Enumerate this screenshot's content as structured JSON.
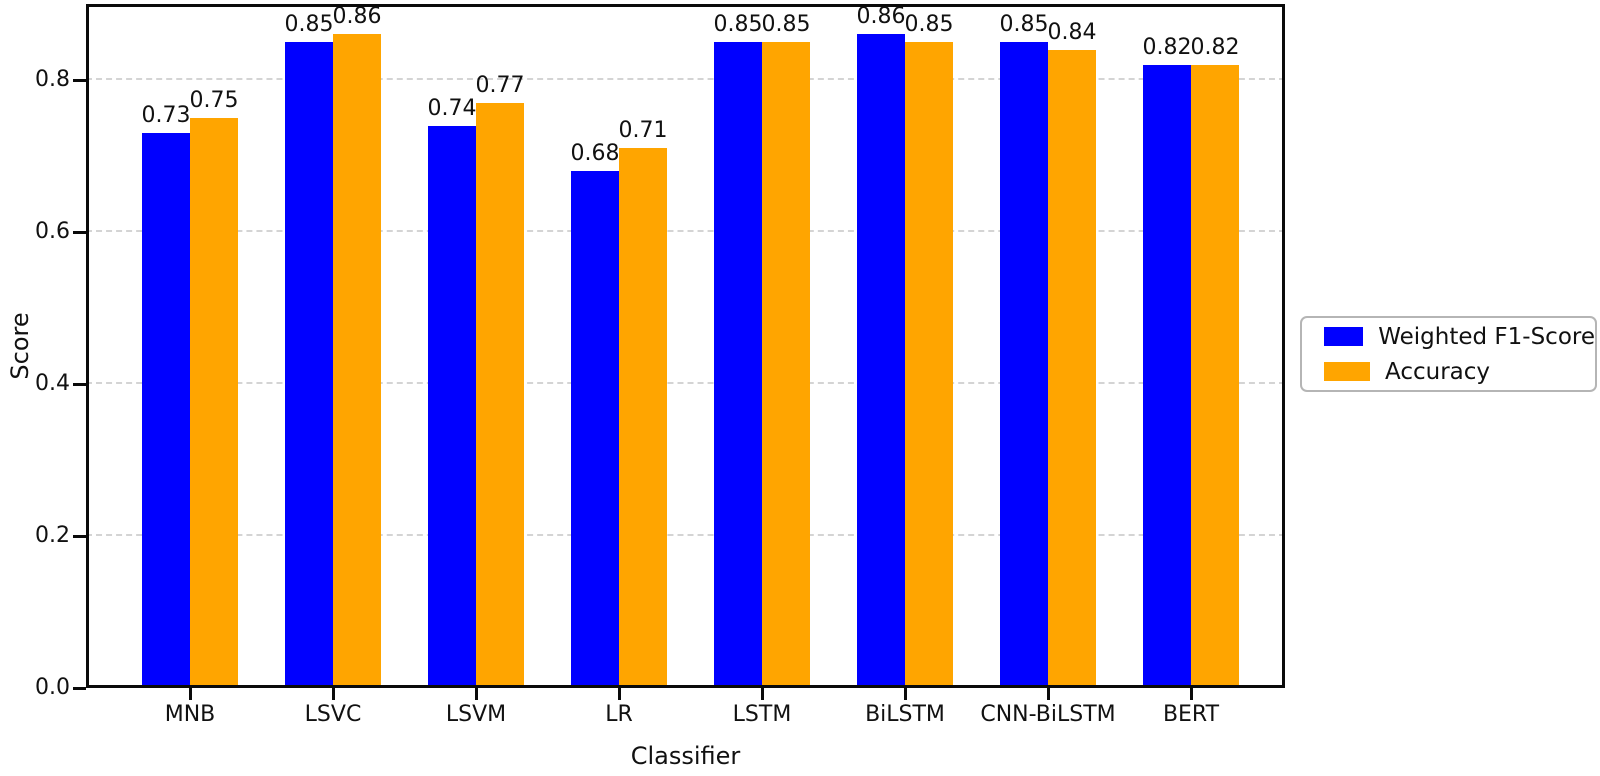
{
  "chart_data": {
    "type": "bar",
    "title": "",
    "xlabel": "Classifier",
    "ylabel": "Score",
    "categories": [
      "MNB",
      "LSVC",
      "LSVM",
      "LR",
      "LSTM",
      "BiLSTM",
      "CNN-BiLSTM",
      "BERT"
    ],
    "series": [
      {
        "name": "Weighted F1-Score",
        "color": "#0000ff",
        "values": [
          0.73,
          0.85,
          0.74,
          0.68,
          0.85,
          0.86,
          0.85,
          0.82
        ],
        "labels": [
          "0.73",
          "0.85",
          "0.74",
          "0.68",
          "0.85",
          "0.86",
          "0.85",
          "0.82"
        ]
      },
      {
        "name": "Accuracy",
        "color": "#ffa500",
        "values": [
          0.75,
          0.86,
          0.77,
          0.71,
          0.85,
          0.85,
          0.84,
          0.82
        ],
        "labels": [
          "0.75",
          "0.86",
          "0.77",
          "0.71",
          "0.85",
          "0.85",
          "0.84",
          "0.82"
        ]
      }
    ],
    "ylim": [
      0,
      0.9
    ],
    "ytick_values": [
      0.0,
      0.2,
      0.4,
      0.6,
      0.8
    ],
    "ytick_labels": [
      "0.0",
      "0.2",
      "0.4",
      "0.6",
      "0.8"
    ],
    "grid": {
      "axis": "y",
      "style": "dashed",
      "color": "#d4d4d4"
    },
    "legend": {
      "position": "outside-right",
      "border_color": "#b5b5b5"
    }
  }
}
